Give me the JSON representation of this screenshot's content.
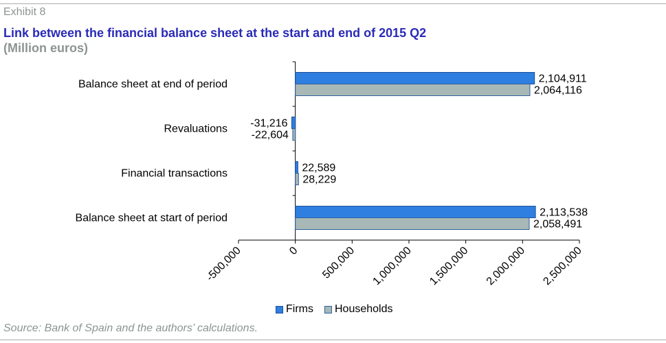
{
  "exhibit_label": "Exhibit 8",
  "title": "Link between the financial balance sheet at the start and end of 2015 Q2",
  "subtitle": "(Million euros)",
  "source": "Source: Bank of Spain and the authors’ calculations.",
  "colors": {
    "firms": "#2f7fe0",
    "firms_edge": "#1d4f9a",
    "households": "#a7b8b6",
    "households_edge": "#2e5f9e"
  },
  "chart_data": {
    "type": "bar",
    "orientation": "horizontal",
    "categories": [
      "Balance sheet at end of period",
      "Revaluations",
      "Financial transactions",
      "Balance sheet at start of period"
    ],
    "series": [
      {
        "name": "Firms",
        "values": [
          2104911,
          -31216,
          22589,
          2113538
        ]
      },
      {
        "name": "Households",
        "values": [
          2064116,
          -22604,
          28229,
          2058491
        ]
      }
    ],
    "value_labels": [
      [
        "2,104,911",
        "2,064,116"
      ],
      [
        "-31,216",
        "-22,604"
      ],
      [
        "22,589",
        "28,229"
      ],
      [
        "2,113,538",
        "2,058,491"
      ]
    ],
    "xlim": [
      -500000,
      2500000
    ],
    "x_ticks": [
      -500000,
      0,
      500000,
      1000000,
      1500000,
      2000000,
      2500000
    ],
    "x_tick_labels": [
      "-500,000",
      "0",
      "500,000",
      "1,000,000",
      "1,500,000",
      "2,000,000",
      "2,500,000"
    ],
    "grid": false,
    "legend_position": "bottom"
  }
}
